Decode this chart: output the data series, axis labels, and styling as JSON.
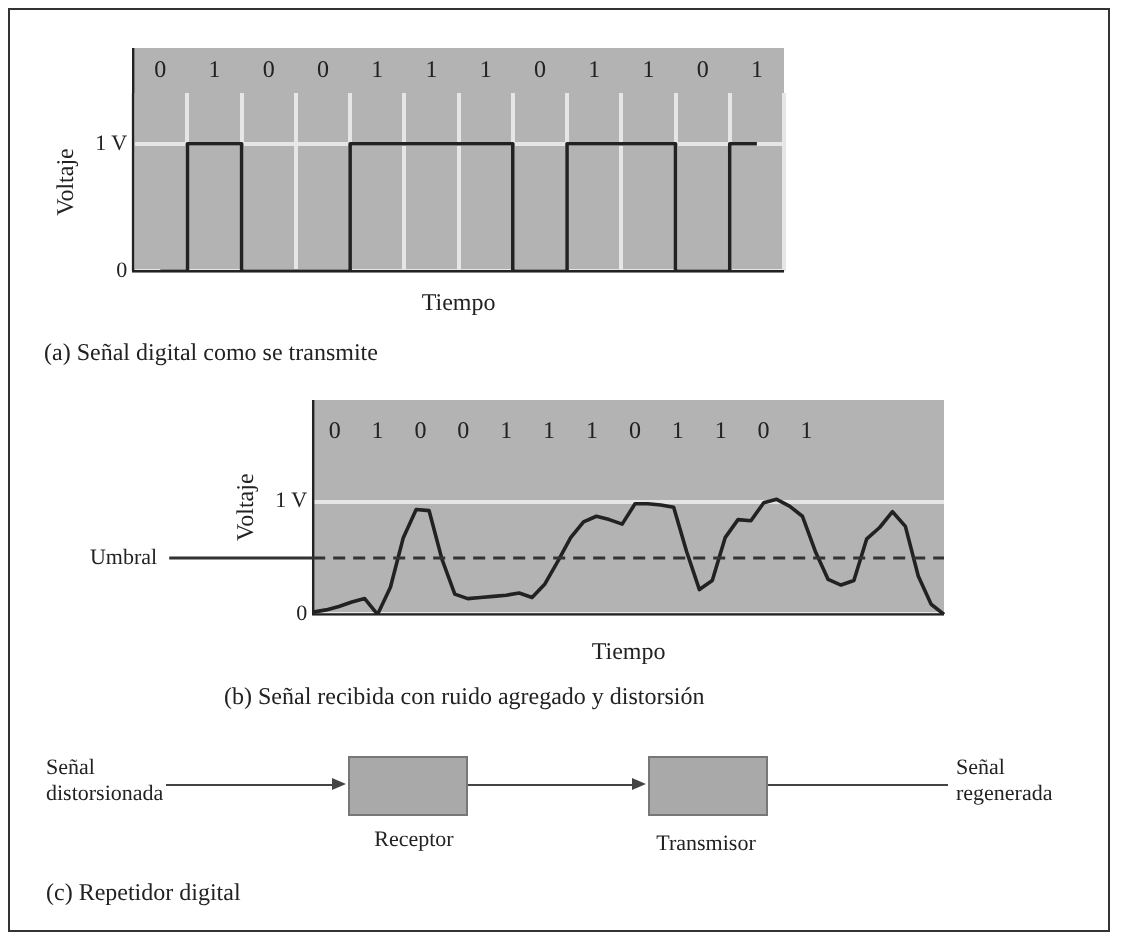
{
  "chart_data": [
    {
      "type": "step",
      "title": "(a) Señal digital como se transmite",
      "xlabel": "Tiempo",
      "ylabel": "Voltaje",
      "categories": [
        "0",
        "1",
        "0",
        "0",
        "1",
        "1",
        "1",
        "0",
        "1",
        "1",
        "0",
        "1"
      ],
      "values": [
        0,
        1,
        0,
        0,
        1,
        1,
        1,
        0,
        1,
        1,
        0,
        1
      ],
      "color": "#222222",
      "ylim": [
        0,
        1.4
      ],
      "yticks": [
        0,
        {
          "value": 1,
          "label": "1 V"
        }
      ],
      "grid": true,
      "marker": "none",
      "line_style": "solid"
    },
    {
      "type": "line",
      "title": "(b) Señal recibida con ruido agregado y distorsión",
      "xlabel": "Tiempo",
      "ylabel": "Voltaje",
      "categories": [
        null,
        null,
        null,
        null,
        null,
        null,
        null,
        null,
        null,
        null,
        null,
        null,
        null,
        null,
        null,
        null,
        null,
        null,
        null,
        null,
        null,
        null,
        null,
        null,
        null,
        null,
        null,
        null,
        null,
        null,
        null,
        null,
        null,
        null,
        null,
        null,
        null,
        null,
        null,
        null,
        null,
        null,
        null,
        null,
        null,
        null,
        null,
        null,
        null,
        null
      ],
      "values": [
        0.02,
        0.04,
        0.07,
        0.11,
        0.14,
        0.0,
        0.24,
        0.68,
        0.93,
        0.92,
        0.49,
        0.18,
        0.14,
        0.15,
        0.16,
        0.17,
        0.19,
        0.15,
        0.27,
        0.47,
        0.68,
        0.82,
        0.87,
        0.84,
        0.8,
        0.98,
        0.98,
        0.97,
        0.95,
        0.56,
        0.22,
        0.3,
        0.68,
        0.84,
        0.83,
        0.99,
        1.02,
        0.96,
        0.87,
        0.56,
        0.31,
        0.26,
        0.3,
        0.67,
        0.77,
        0.91,
        0.78,
        0.34,
        0.09,
        0.0
      ],
      "color": "#222222",
      "ylim": [
        0,
        1.9
      ],
      "yticks": [
        0,
        {
          "value": 1,
          "label": "1 V"
        }
      ],
      "tick_labels": "y",
      "grid": "y",
      "marker": "none",
      "line_style": "solid",
      "ref_lines": [
        {
          "axis": "y",
          "value": 0.5,
          "label": "Umbral",
          "color": "#333333",
          "line_style": "dashed"
        }
      ],
      "annotations": [
        "0",
        "1",
        "0",
        "0",
        "1",
        "1",
        "1",
        "0",
        "1",
        "1",
        "0",
        "1"
      ]
    },
    {
      "type": "other",
      "title": "(c) Repetidor digital",
      "annotations": [
        "Señal distorsionada",
        "Receptor",
        "Transmisor",
        "Señal regenerada"
      ]
    }
  ]
}
